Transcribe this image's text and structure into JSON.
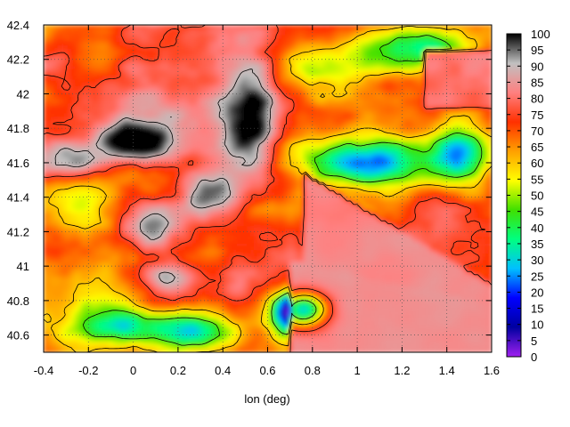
{
  "chart_data": {
    "type": "heatmap",
    "title": "",
    "xlabel": "lon (deg)",
    "ylabel": "",
    "xlim": [
      -0.4,
      1.6
    ],
    "ylim": [
      40.5,
      42.4
    ],
    "x_ticks": [
      "-0.4",
      "-0.2",
      "0",
      "0.2",
      "0.4",
      "0.6",
      "0.8",
      "1",
      "1.2",
      "1.4",
      "1.6"
    ],
    "y_ticks": [
      "40.6",
      "40.8",
      "41",
      "41.2",
      "41.4",
      "41.6",
      "41.8",
      "42",
      "42.2",
      "42.4"
    ],
    "grid": true,
    "colorbar": {
      "min": 0,
      "max": 100,
      "ticks": [
        "0",
        "5",
        "10",
        "15",
        "20",
        "25",
        "30",
        "35",
        "40",
        "45",
        "50",
        "55",
        "60",
        "65",
        "70",
        "75",
        "80",
        "85",
        "90",
        "95",
        "100"
      ],
      "palette": [
        "#a020f0",
        "#0000a0",
        "#0000ff",
        "#00c0ff",
        "#00ff80",
        "#40e000",
        "#ffff00",
        "#ffa000",
        "#ff3000",
        "#ff8080",
        "#c0c0c0",
        "#000000"
      ]
    }
  }
}
